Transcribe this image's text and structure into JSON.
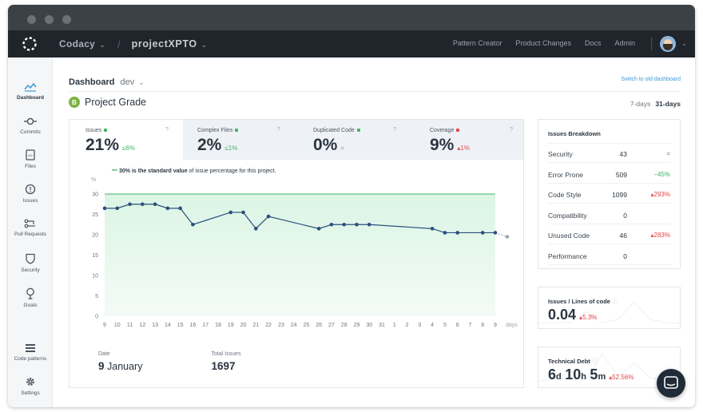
{
  "colors": {
    "nav_bg": "#1f252b",
    "accent_blue": "#3e9ad6",
    "line": "#2c4f7c",
    "good": "#43b36a",
    "bad": "#e0464a",
    "grade": "#7cb342"
  },
  "navbar": {
    "brand": "Codacy",
    "project": "projectXPTO",
    "links": [
      "Pattern Creator",
      "Product Changes",
      "Docs",
      "Admin"
    ],
    "logo_icon": "codacy-logo-icon",
    "avatar_icon": "user-avatar"
  },
  "sidebar": {
    "items": [
      {
        "label": "Dashboard",
        "icon": "chart-line-icon"
      },
      {
        "label": "Commits",
        "icon": "commit-icon"
      },
      {
        "label": "Files",
        "icon": "file-icon"
      },
      {
        "label": "Issues",
        "icon": "alert-circle-icon"
      },
      {
        "label": "Pull Requests",
        "icon": "pull-request-icon"
      },
      {
        "label": "Security",
        "icon": "shield-icon"
      },
      {
        "label": "Goals",
        "icon": "goal-pin-icon"
      },
      {
        "label": "Code patterns",
        "icon": "list-icon"
      },
      {
        "label": "Settings",
        "icon": "gear-icon"
      }
    ]
  },
  "header": {
    "title": "Dashboard",
    "branch": "dev",
    "switch_link": "Switch to old dashboard",
    "grade_letter": "B",
    "grade_title": "Project Grade",
    "range_7": "7-days",
    "range_31": "31-days"
  },
  "metrics": [
    {
      "name": "Issues",
      "value": "21%",
      "delta": "≤6%",
      "status": "good"
    },
    {
      "name": "Complex Files",
      "value": "2%",
      "delta": "≤1%",
      "status": "good"
    },
    {
      "name": "Duplicated Code",
      "value": "0%",
      "delta": "=",
      "status": "neutral"
    },
    {
      "name": "Coverage",
      "value": "9%",
      "delta": "▴1%",
      "status": "bad"
    }
  ],
  "help_symbol": "?",
  "chart_data": {
    "type": "line",
    "legend_bold": "30% is the standard value",
    "legend_rest": "of issue percentage for this project.",
    "ylabel": "%",
    "xlabel": "days",
    "ylim": [
      0,
      30
    ],
    "yticks": [
      0,
      5,
      10,
      15,
      20,
      25,
      30
    ],
    "reference": 30,
    "categories": [
      "9",
      "10",
      "11",
      "12",
      "13",
      "14",
      "15",
      "16",
      "17",
      "18",
      "19",
      "20",
      "21",
      "22",
      "23",
      "24",
      "25",
      "26",
      "27",
      "28",
      "29",
      "30",
      "31",
      "1",
      "2",
      "3",
      "4",
      "5",
      "6",
      "7",
      "8",
      "9"
    ],
    "values": [
      26.5,
      26.5,
      27.5,
      27.5,
      27.5,
      26.5,
      26.5,
      22.5,
      null,
      null,
      25.5,
      25.5,
      21.5,
      24.5,
      null,
      null,
      null,
      21.5,
      22.5,
      22.5,
      22.5,
      22.5,
      null,
      null,
      null,
      null,
      21.5,
      20.5,
      20.5,
      null,
      20.5,
      20.5
    ],
    "projected": 19.5
  },
  "stats": {
    "date_label": "Date",
    "date_day": "9",
    "date_month": "January",
    "total_label": "Total Issues",
    "total_value": "1697"
  },
  "breakdown": {
    "title": "Issues Breakdown",
    "rows": [
      {
        "name": "Security",
        "count": "43",
        "delta": "=",
        "status": "neutral"
      },
      {
        "name": "Error Prone",
        "count": "509",
        "delta": "−45%",
        "status": "good"
      },
      {
        "name": "Code Style",
        "count": "1099",
        "delta": "▴293%",
        "status": "bad"
      },
      {
        "name": "Compatibility",
        "count": "0",
        "delta": "",
        "status": "neutral"
      },
      {
        "name": "Unused Code",
        "count": "46",
        "delta": "▴283%",
        "status": "bad"
      },
      {
        "name": "Performance",
        "count": "0",
        "delta": "",
        "status": "neutral"
      }
    ]
  },
  "loc_card": {
    "title": "Issues / Lines of code",
    "value": "0.04",
    "delta": "▴5.3%"
  },
  "debt_card": {
    "title": "Technical Debt",
    "d": "6",
    "h": "10",
    "m": "5",
    "d_unit": "d",
    "h_unit": "h",
    "m_unit": "m",
    "delta": "▴52.56%"
  }
}
